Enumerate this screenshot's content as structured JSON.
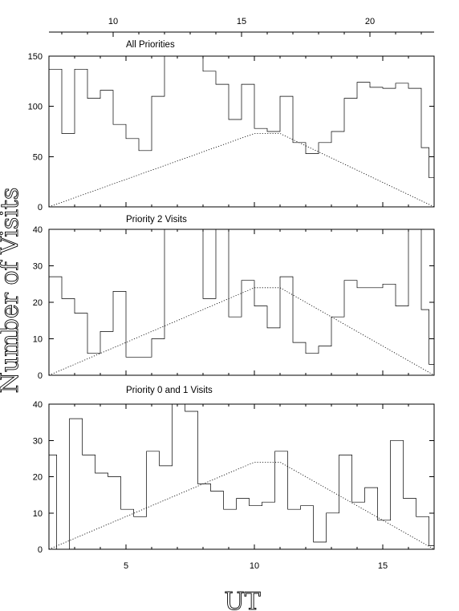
{
  "chart_data": [
    {
      "type": "histogram",
      "title": "All Priorities",
      "ylim": [
        0,
        150
      ],
      "yticks": [
        "0",
        "50",
        "100",
        "150"
      ],
      "bin_edges_ut": [
        2.0,
        2.5,
        3.0,
        3.5,
        4.0,
        4.5,
        5.0,
        5.5,
        6.0,
        6.5,
        7.0,
        7.5,
        8.0,
        8.5,
        9.0,
        9.5,
        10.0,
        10.5,
        11.0,
        11.5,
        12.0,
        12.5,
        13.0,
        13.5,
        14.0,
        14.5,
        15.0,
        15.5,
        16.0,
        16.5,
        16.8,
        17.0
      ],
      "values": [
        137,
        73,
        137,
        108,
        116,
        82,
        68,
        56,
        110,
        150,
        150,
        150,
        135,
        122,
        87,
        122,
        78,
        75,
        110,
        64,
        53,
        64,
        75,
        108,
        124,
        119,
        118,
        123,
        118,
        59,
        29
      ],
      "reference": {
        "x": [
          2.0,
          10.0,
          11.0,
          17.0
        ],
        "y": [
          0,
          73,
          73,
          0
        ]
      }
    },
    {
      "type": "histogram",
      "title": "Priority 2 Visits",
      "ylim": [
        0,
        40
      ],
      "yticks": [
        "0",
        "10",
        "20",
        "30",
        "40"
      ],
      "bin_edges_ut": [
        2.0,
        2.5,
        3.0,
        3.5,
        4.0,
        4.5,
        5.0,
        5.5,
        6.0,
        6.5,
        7.0,
        7.5,
        8.0,
        8.5,
        9.0,
        9.5,
        10.0,
        10.5,
        11.0,
        11.5,
        12.0,
        12.5,
        13.0,
        13.5,
        14.0,
        14.5,
        15.0,
        15.5,
        16.0,
        16.5,
        16.8,
        17.0
      ],
      "values": [
        27,
        21,
        17,
        6,
        12,
        23,
        5,
        5,
        10,
        40,
        40,
        40,
        21,
        40,
        16,
        26,
        19,
        13,
        27,
        9,
        6,
        8,
        16,
        26,
        24,
        24,
        25,
        19,
        40,
        18,
        3
      ],
      "reference": {
        "x": [
          2.0,
          10.0,
          11.0,
          17.0
        ],
        "y": [
          0,
          24,
          24,
          0
        ]
      }
    },
    {
      "type": "histogram",
      "title": "Priority 0 and 1 Visits",
      "ylim": [
        0,
        40
      ],
      "yticks": [
        "0",
        "10",
        "20",
        "30",
        "40"
      ],
      "bin_edges_ut": [
        2.0,
        2.3,
        2.8,
        3.3,
        3.8,
        4.3,
        4.8,
        5.3,
        5.8,
        6.3,
        6.8,
        7.3,
        7.8,
        8.3,
        8.8,
        9.3,
        9.8,
        10.3,
        10.8,
        11.3,
        11.8,
        12.3,
        12.8,
        13.3,
        13.8,
        14.3,
        14.8,
        15.3,
        15.8,
        16.3,
        16.8,
        17.0
      ],
      "values": [
        26,
        0,
        36,
        26,
        21,
        20,
        11,
        9,
        27,
        23,
        40,
        38,
        18,
        16,
        11,
        14,
        12,
        13,
        27,
        11,
        12,
        2,
        10,
        26,
        13,
        17,
        8,
        30,
        14,
        9,
        1
      ],
      "reference": {
        "x": [
          2.0,
          10.0,
          11.0,
          17.0
        ],
        "y": [
          0,
          24,
          24,
          0
        ]
      }
    }
  ],
  "top_axis": {
    "ticks": [
      "10",
      "15",
      "20"
    ],
    "range": [
      7.5,
      22.5
    ]
  },
  "bottom_axis": {
    "ticks": [
      "5",
      "10",
      "15"
    ],
    "range": [
      2.0,
      17.0
    ]
  },
  "ylabel": "Number of Visits",
  "xlabel": "UT"
}
